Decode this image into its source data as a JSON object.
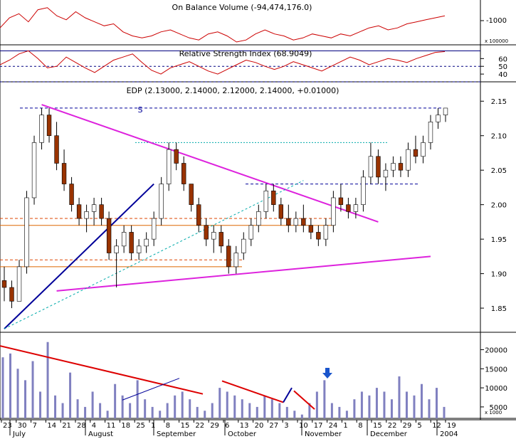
{
  "colors": {
    "obv_line": "#cc0000",
    "rsi_line": "#cc0000",
    "rsi_ref_line": "#000080",
    "candle_up": "#ffffff",
    "candle_down": "#993300",
    "candle_outline": "#000000",
    "volume_bar": "#8080c0",
    "trend_magenta": "#dd22dd",
    "trend_blue": "#000099",
    "trend_red": "#dd0000",
    "level_dash_blue": "#000099",
    "level_dash_orange": "#dd4400",
    "level_solid_orange": "#dd6600",
    "level_dash_cyan": "#00aaaa",
    "arrow_blue": "#1a55cc",
    "panel_border": "#000000",
    "grid_dot": "#cccccc"
  },
  "chart_data": [
    {
      "type": "line",
      "title": "On Balance Volume (-94,474,176.0)",
      "axis_labels": [
        "-1000"
      ],
      "scale_label": "x 100000",
      "grid": false,
      "x": [
        0,
        4,
        8,
        12,
        16,
        20,
        24,
        28,
        32,
        36,
        40,
        44,
        48,
        52,
        56,
        60,
        64,
        68,
        72,
        76,
        80,
        84,
        88,
        92,
        96,
        100,
        104,
        108,
        112,
        116,
        120,
        124,
        128,
        132,
        136,
        140,
        144,
        148,
        152,
        156,
        160,
        164,
        168,
        172,
        176,
        180,
        184,
        188
      ],
      "values": [
        -1010,
        -960,
        -940,
        -980,
        -920,
        -910,
        -950,
        -970,
        -930,
        -960,
        -980,
        -1000,
        -990,
        -1030,
        -1050,
        -1060,
        -1050,
        -1030,
        -1020,
        -1040,
        -1060,
        -1070,
        -1040,
        -1030,
        -1050,
        -1080,
        -1070,
        -1040,
        -1020,
        -1040,
        -1050,
        -1070,
        -1060,
        -1040,
        -1050,
        -1060,
        -1040,
        -1050,
        -1030,
        -1010,
        -1000,
        -1020,
        -1010,
        -990,
        -980,
        -970,
        -960,
        -950
      ]
    },
    {
      "type": "line",
      "title": "Relative Strength Index (68.9049)",
      "y_ticks": [
        40,
        50,
        60
      ],
      "reference_lines": [
        70,
        50,
        30
      ],
      "ylim": [
        30,
        75
      ],
      "x": [
        0,
        4,
        8,
        12,
        16,
        20,
        24,
        28,
        32,
        36,
        40,
        44,
        48,
        52,
        56,
        60,
        64,
        68,
        72,
        76,
        80,
        84,
        88,
        92,
        96,
        100,
        104,
        108,
        112,
        116,
        120,
        124,
        128,
        132,
        136,
        140,
        144,
        148,
        152,
        156,
        160,
        164,
        168,
        172,
        176,
        180,
        184,
        188
      ],
      "values": [
        52,
        58,
        66,
        70,
        60,
        48,
        50,
        62,
        55,
        48,
        42,
        50,
        58,
        62,
        66,
        55,
        45,
        40,
        48,
        52,
        56,
        50,
        44,
        40,
        46,
        52,
        58,
        55,
        50,
        46,
        50,
        56,
        52,
        48,
        44,
        50,
        56,
        62,
        58,
        52,
        56,
        60,
        58,
        55,
        60,
        64,
        68,
        69
      ]
    },
    {
      "type": "candlestick",
      "title": "EDP (2.13000, 2.14000, 2.12000, 2.14000, +0.01000)",
      "annotation": "S",
      "y_ticks": [
        1.85,
        1.9,
        1.95,
        2.0,
        2.05,
        2.1,
        2.15
      ],
      "ylim": [
        1.815,
        2.175
      ],
      "ohlc": [
        [
          1.89,
          1.91,
          1.86,
          1.88
        ],
        [
          1.88,
          1.89,
          1.85,
          1.86
        ],
        [
          1.86,
          1.92,
          1.86,
          1.91
        ],
        [
          1.91,
          2.02,
          1.9,
          2.01
        ],
        [
          2.01,
          2.1,
          2.0,
          2.09
        ],
        [
          2.09,
          2.14,
          2.08,
          2.13
        ],
        [
          2.13,
          2.14,
          2.09,
          2.1
        ],
        [
          2.1,
          2.12,
          2.05,
          2.06
        ],
        [
          2.06,
          2.08,
          2.02,
          2.03
        ],
        [
          2.03,
          2.04,
          1.99,
          2.0
        ],
        [
          2.0,
          2.01,
          1.97,
          1.98
        ],
        [
          1.98,
          2.0,
          1.96,
          1.99
        ],
        [
          1.99,
          2.01,
          1.97,
          2.0
        ],
        [
          2.0,
          2.01,
          1.97,
          1.98
        ],
        [
          1.98,
          1.99,
          1.92,
          1.93
        ],
        [
          1.93,
          1.95,
          1.88,
          1.94
        ],
        [
          1.94,
          1.97,
          1.93,
          1.96
        ],
        [
          1.96,
          1.97,
          1.92,
          1.93
        ],
        [
          1.93,
          1.95,
          1.92,
          1.94
        ],
        [
          1.94,
          1.96,
          1.93,
          1.95
        ],
        [
          1.95,
          1.99,
          1.94,
          1.98
        ],
        [
          1.98,
          2.04,
          1.97,
          2.03
        ],
        [
          2.03,
          2.09,
          2.02,
          2.08
        ],
        [
          2.08,
          2.09,
          2.05,
          2.06
        ],
        [
          2.06,
          2.07,
          2.02,
          2.03
        ],
        [
          2.03,
          2.03,
          1.99,
          2.0
        ],
        [
          2.0,
          2.01,
          1.96,
          1.97
        ],
        [
          1.97,
          1.98,
          1.94,
          1.95
        ],
        [
          1.95,
          1.97,
          1.93,
          1.96
        ],
        [
          1.96,
          1.97,
          1.93,
          1.94
        ],
        [
          1.94,
          1.95,
          1.9,
          1.91
        ],
        [
          1.91,
          1.94,
          1.9,
          1.93
        ],
        [
          1.93,
          1.96,
          1.92,
          1.95
        ],
        [
          1.95,
          1.98,
          1.94,
          1.97
        ],
        [
          1.97,
          2.0,
          1.96,
          1.99
        ],
        [
          1.99,
          2.03,
          1.98,
          2.02
        ],
        [
          2.02,
          2.03,
          1.99,
          2.0
        ],
        [
          2.0,
          2.01,
          1.97,
          1.98
        ],
        [
          1.98,
          2.0,
          1.96,
          1.97
        ],
        [
          1.97,
          1.99,
          1.96,
          1.98
        ],
        [
          1.98,
          2.0,
          1.96,
          1.97
        ],
        [
          1.97,
          1.98,
          1.95,
          1.96
        ],
        [
          1.96,
          1.97,
          1.94,
          1.95
        ],
        [
          1.95,
          1.98,
          1.94,
          1.97
        ],
        [
          1.97,
          2.02,
          1.96,
          2.01
        ],
        [
          2.01,
          2.03,
          1.99,
          2.0
        ],
        [
          2.0,
          2.01,
          1.98,
          1.99
        ],
        [
          1.99,
          2.01,
          1.98,
          2.0
        ],
        [
          2.0,
          2.05,
          1.99,
          2.04
        ],
        [
          2.04,
          2.09,
          2.03,
          2.07
        ],
        [
          2.07,
          2.08,
          2.03,
          2.04
        ],
        [
          2.04,
          2.06,
          2.02,
          2.05
        ],
        [
          2.05,
          2.07,
          2.04,
          2.06
        ],
        [
          2.06,
          2.07,
          2.04,
          2.05
        ],
        [
          2.05,
          2.09,
          2.04,
          2.08
        ],
        [
          2.08,
          2.1,
          2.06,
          2.07
        ],
        [
          2.07,
          2.1,
          2.06,
          2.09
        ],
        [
          2.09,
          2.13,
          2.08,
          2.12
        ],
        [
          2.12,
          2.14,
          2.11,
          2.13
        ],
        [
          2.13,
          2.14,
          2.12,
          2.14
        ]
      ],
      "horizontal_levels": [
        2.14,
        2.09,
        2.03,
        1.98,
        1.97,
        1.92,
        1.91
      ],
      "trendlines": [
        {
          "color_key": "trend_magenta",
          "from": [
            5,
            2.145
          ],
          "to": [
            50,
            1.975
          ]
        },
        {
          "color_key": "trend_magenta",
          "from": [
            7,
            1.875
          ],
          "to": [
            57,
            1.925
          ]
        },
        {
          "color_key": "trend_blue",
          "from": [
            0,
            1.82
          ],
          "to": [
            20,
            2.03
          ]
        },
        {
          "color_key": "level_dash_cyan",
          "from": [
            0,
            1.82
          ],
          "to": [
            40,
            2.035
          ]
        }
      ]
    },
    {
      "type": "bar",
      "title": "",
      "y_ticks": [
        5000,
        10000,
        15000,
        20000
      ],
      "scale_label": "x 1000",
      "ylim": [
        2000,
        24000
      ],
      "values": [
        18000,
        19000,
        15000,
        12000,
        17000,
        9000,
        22000,
        8000,
        6000,
        14000,
        7000,
        5000,
        9000,
        6000,
        4000,
        11000,
        8000,
        6000,
        12000,
        7000,
        5000,
        4000,
        6000,
        8000,
        9000,
        7000,
        5000,
        4000,
        6000,
        10000,
        9000,
        8000,
        7000,
        6000,
        5000,
        8000,
        7000,
        6000,
        5000,
        4000,
        3000,
        6000,
        9000,
        12000,
        6000,
        5000,
        4000,
        7000,
        9000,
        8000,
        10000,
        9000,
        7000,
        13000,
        9000,
        8000,
        11000,
        7000,
        10000,
        5000
      ],
      "x_tick_labels": [
        "23",
        "30",
        "7",
        "14",
        "21",
        "28",
        "4",
        "11",
        "18",
        "25",
        "1",
        "8",
        "15",
        "22",
        "29",
        "6",
        "13",
        "20",
        "27",
        "3",
        "10",
        "17",
        "24",
        "1",
        "8",
        "15",
        "22",
        "29",
        "5",
        "12",
        "19"
      ],
      "month_labels": [
        "July",
        "August",
        "September",
        "October",
        "November",
        "December",
        "2004"
      ]
    }
  ]
}
